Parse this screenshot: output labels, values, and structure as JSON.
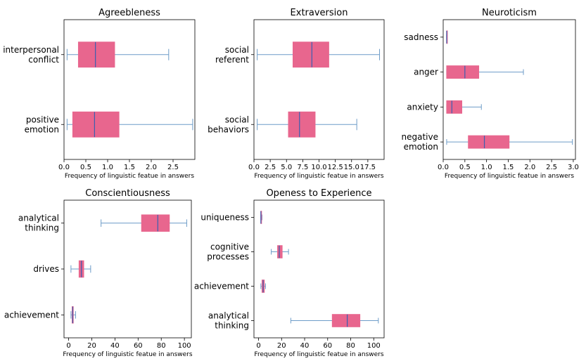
{
  "colors": {
    "box_fill": "#e8668e",
    "median": "#3b5fb0",
    "whisker": "#6d9cc8"
  },
  "chart_data": [
    {
      "type": "box",
      "orientation": "horizontal",
      "title": "Agreebleness",
      "xlabel": "Frequency of linguistic featue in answers",
      "xlim": [
        0,
        3.0
      ],
      "xticks": [
        "0.0",
        "0.5",
        "1.0",
        "1.5",
        "2.0",
        "2.5"
      ],
      "xtick_values": [
        0,
        0.5,
        1.0,
        1.5,
        2.0,
        2.5
      ],
      "categories": [
        {
          "label": [
            "interpersonal",
            "conflict"
          ],
          "whislo": 0.07,
          "q1": 0.33,
          "med": 0.72,
          "q3": 1.16,
          "whishi": 2.4
        },
        {
          "label": [
            "positive",
            "emotion"
          ],
          "whislo": 0.07,
          "q1": 0.2,
          "med": 0.7,
          "q3": 1.26,
          "whishi": 2.95
        }
      ]
    },
    {
      "type": "box",
      "orientation": "horizontal",
      "title": "Extraversion",
      "xlabel": "Frequency of linguistic featue in answers",
      "xlim": [
        0,
        20
      ],
      "xticks": [
        "0.0",
        "2.5",
        "5.0",
        "7.5",
        "10.0",
        "12.5",
        "15.0",
        "17.5"
      ],
      "xtick_values": [
        0,
        2.5,
        5.0,
        7.5,
        10.0,
        12.5,
        15.0,
        17.5
      ],
      "categories": [
        {
          "label": [
            "social",
            "referent"
          ],
          "whislo": 0.5,
          "q1": 6.0,
          "med": 8.9,
          "q3": 11.5,
          "whishi": 19.3
        },
        {
          "label": [
            "social",
            "behaviors"
          ],
          "whislo": 0.5,
          "q1": 5.3,
          "med": 7.0,
          "q3": 9.4,
          "whishi": 15.8
        }
      ]
    },
    {
      "type": "box",
      "orientation": "horizontal",
      "title": "Neuroticism",
      "xlabel": "Frequency of linguistic featue in answers",
      "xlim": [
        0,
        3.05
      ],
      "xticks": [
        "0.0",
        "0.5",
        "1.0",
        "1.5",
        "2.0",
        "2.5",
        "3.0"
      ],
      "xtick_values": [
        0,
        0.5,
        1.0,
        1.5,
        2.0,
        2.5,
        3.0
      ],
      "categories": [
        {
          "label": [
            "sadness"
          ],
          "whislo": 0.08,
          "q1": 0.08,
          "med": 0.08,
          "q3": 0.08,
          "whishi": 0.08
        },
        {
          "label": [
            "anger"
          ],
          "whislo": 0.08,
          "q1": 0.08,
          "med": 0.5,
          "q3": 0.82,
          "whishi": 1.85
        },
        {
          "label": [
            "anxiety"
          ],
          "whislo": 0.08,
          "q1": 0.08,
          "med": 0.2,
          "q3": 0.43,
          "whishi": 0.88
        },
        {
          "label": [
            "negative",
            "emotion"
          ],
          "whislo": 0.08,
          "q1": 0.58,
          "med": 0.95,
          "q3": 1.52,
          "whishi": 2.98
        }
      ]
    },
    {
      "type": "box",
      "orientation": "horizontal",
      "title": "Conscientiousness",
      "xlabel": "Frequency of linguistic featue in answers",
      "xlim": [
        -4,
        106
      ],
      "xticks": [
        "0",
        "20",
        "40",
        "60",
        "80",
        "100"
      ],
      "xtick_values": [
        0,
        20,
        40,
        60,
        80,
        100
      ],
      "categories": [
        {
          "label": [
            "analytical",
            "thinking"
          ],
          "whislo": 28,
          "q1": 63,
          "med": 77,
          "q3": 87,
          "whishi": 102
        },
        {
          "label": [
            "drives"
          ],
          "whislo": 2,
          "q1": 9,
          "med": 11,
          "q3": 13,
          "whishi": 19
        },
        {
          "label": [
            "achievement"
          ],
          "whislo": 2,
          "q1": 3,
          "med": 3.5,
          "q3": 4,
          "whishi": 6
        }
      ]
    },
    {
      "type": "box",
      "orientation": "horizontal",
      "title": "Openess to Experience",
      "xlabel": "Frequency of linguistic featue in answers",
      "xlim": [
        -4,
        109
      ],
      "xticks": [
        "0",
        "20",
        "40",
        "60",
        "80",
        "100"
      ],
      "xtick_values": [
        0,
        20,
        40,
        60,
        80,
        100
      ],
      "categories": [
        {
          "label": [
            "uniqueness"
          ],
          "whislo": 2,
          "q1": 2,
          "med": 2,
          "q3": 2.5,
          "whishi": 3
        },
        {
          "label": [
            "cognitive",
            "processes"
          ],
          "whislo": 11,
          "q1": 16.5,
          "med": 18,
          "q3": 20.5,
          "whishi": 26
        },
        {
          "label": [
            "achievement"
          ],
          "whislo": 2,
          "q1": 3,
          "med": 4,
          "q3": 5,
          "whishi": 6
        },
        {
          "label": [
            "analytical",
            "thinking"
          ],
          "whislo": 28,
          "q1": 64,
          "med": 77,
          "q3": 88,
          "whishi": 104
        }
      ]
    }
  ]
}
